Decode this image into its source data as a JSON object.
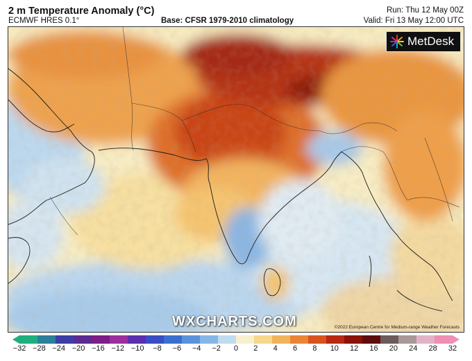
{
  "header": {
    "title": "2 m Temperature Anomaly (°C)",
    "subtitle": "ECMWF HRES 0.1°",
    "base": "Base: CFSR 1979-2010 climatology",
    "run": "Run: Thu 12 May 00Z",
    "valid": "Valid: Fri 13 May 12:00 UTC"
  },
  "logo": {
    "text": "MetDesk",
    "icon": "metdesk-star-icon"
  },
  "watermark": "WXCHARTS.COM",
  "copyright": "©2022 European Centre for Medium-range Weather Forecasts",
  "colorbar": {
    "ticks": [
      "−32",
      "−28",
      "−24",
      "−20",
      "−16",
      "−12",
      "−10",
      "−8",
      "−6",
      "−4",
      "−2",
      "0",
      "2",
      "4",
      "6",
      "8",
      "10",
      "12",
      "16",
      "20",
      "24",
      "28",
      "32"
    ],
    "colors": [
      "#1fae7f",
      "#2a7f9a",
      "#3c3ea6",
      "#5b2a92",
      "#7d1d86",
      "#9b2f9d",
      "#5a2fb0",
      "#3a4dc4",
      "#3a6fd0",
      "#5b92dc",
      "#86b6e6",
      "#bfdcf0",
      "#f7f0cf",
      "#f6d78c",
      "#f0b45a",
      "#e98535",
      "#d9531f",
      "#b82812",
      "#8a1208",
      "#5e0d0d",
      "#6b5b5b",
      "#a89898",
      "#e2b3c6",
      "#ef8fb4"
    ],
    "min": -32,
    "max": 32
  }
}
